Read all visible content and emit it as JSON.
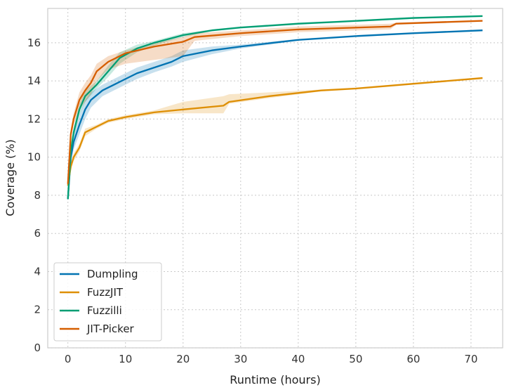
{
  "chart_data": {
    "type": "line",
    "xlabel": "Runtime (hours)",
    "ylabel": "Coverage (%)",
    "xlim": [
      -3.5,
      75.5
    ],
    "ylim": [
      0,
      17.8
    ],
    "xticks": [
      0,
      10,
      20,
      30,
      40,
      50,
      60,
      70
    ],
    "yticks": [
      0,
      2,
      4,
      6,
      8,
      10,
      12,
      14,
      16
    ],
    "grid": true,
    "legend": "bottom-left",
    "series": [
      {
        "name": "Dumpling",
        "color": "#0173b2",
        "x": [
          0,
          0.5,
          1,
          2,
          3,
          4,
          6,
          8,
          10,
          12,
          15,
          18,
          20,
          25,
          30,
          40,
          50,
          60,
          72
        ],
        "y": [
          7.8,
          10,
          10.8,
          11.7,
          12.5,
          13,
          13.5,
          13.8,
          14.1,
          14.4,
          14.7,
          15,
          15.3,
          15.6,
          15.8,
          16.15,
          16.35,
          16.5,
          16.65
        ],
        "lower": [
          7.7,
          9.6,
          10.4,
          11.2,
          12.0,
          12.6,
          13.2,
          13.5,
          13.8,
          14.1,
          14.45,
          14.75,
          15.0,
          15.4,
          15.7,
          16.1,
          16.3,
          16.45,
          16.6
        ],
        "upper": [
          7.9,
          10.4,
          11.2,
          12.2,
          13.0,
          13.4,
          13.8,
          14.1,
          14.4,
          14.7,
          15.0,
          15.3,
          15.6,
          15.8,
          15.9,
          16.2,
          16.4,
          16.55,
          16.7
        ]
      },
      {
        "name": "FuzzJIT",
        "color": "#de8f05",
        "x": [
          0,
          0.5,
          1,
          2,
          3,
          5,
          7,
          10,
          15,
          20,
          27,
          28,
          35,
          44,
          50,
          60,
          72
        ],
        "y": [
          8.5,
          9.5,
          10,
          10.5,
          11.3,
          11.6,
          11.9,
          12.1,
          12.35,
          12.5,
          12.7,
          12.9,
          13.2,
          13.5,
          13.6,
          13.85,
          14.15
        ],
        "lower": [
          8.4,
          9.3,
          9.8,
          10.3,
          11.1,
          11.5,
          11.8,
          12.0,
          12.25,
          12.3,
          12.3,
          12.8,
          13.1,
          13.45,
          13.55,
          13.8,
          14.1
        ],
        "upper": [
          8.6,
          9.7,
          10.2,
          10.7,
          11.5,
          11.7,
          12.0,
          12.2,
          12.45,
          12.9,
          13.2,
          13.3,
          13.4,
          13.55,
          13.65,
          13.9,
          14.2
        ]
      },
      {
        "name": "Fuzzilli",
        "color": "#029e73",
        "x": [
          0,
          0.5,
          1,
          2,
          3,
          5,
          7,
          9,
          12,
          15,
          20,
          25,
          30,
          40,
          47,
          60,
          72
        ],
        "y": [
          7.8,
          10.3,
          11.3,
          12.5,
          13.2,
          13.8,
          14.5,
          15.2,
          15.7,
          16,
          16.4,
          16.65,
          16.8,
          17,
          17.1,
          17.3,
          17.4
        ],
        "lower": [
          7.7,
          10.0,
          11.0,
          12.2,
          12.9,
          13.6,
          14.2,
          14.9,
          15.5,
          15.85,
          16.3,
          16.6,
          16.75,
          16.95,
          17.05,
          17.25,
          17.35
        ],
        "upper": [
          7.9,
          10.6,
          11.6,
          12.8,
          13.5,
          14.0,
          14.8,
          15.5,
          15.9,
          16.1,
          16.5,
          16.7,
          16.85,
          17.05,
          17.15,
          17.35,
          17.45
        ]
      },
      {
        "name": "JIT-Picker",
        "color": "#d55e00",
        "x": [
          0,
          0.5,
          1,
          2,
          3,
          4,
          5,
          7,
          10,
          15,
          20,
          22,
          30,
          40,
          56,
          57,
          72
        ],
        "y": [
          8.6,
          11.2,
          12,
          13,
          13.5,
          13.9,
          14.5,
          15,
          15.45,
          15.8,
          16.05,
          16.3,
          16.5,
          16.7,
          16.85,
          17,
          17.15
        ],
        "lower": [
          8.5,
          10.9,
          11.7,
          12.5,
          12.9,
          13.3,
          14.0,
          14.6,
          14.9,
          15.1,
          15.3,
          16.1,
          16.35,
          16.55,
          16.7,
          16.95,
          17.1
        ],
        "upper": [
          8.7,
          11.5,
          12.3,
          13.4,
          13.9,
          14.3,
          14.9,
          15.3,
          15.6,
          16.0,
          16.3,
          16.5,
          16.65,
          16.85,
          17.0,
          17.05,
          17.2
        ]
      }
    ]
  }
}
